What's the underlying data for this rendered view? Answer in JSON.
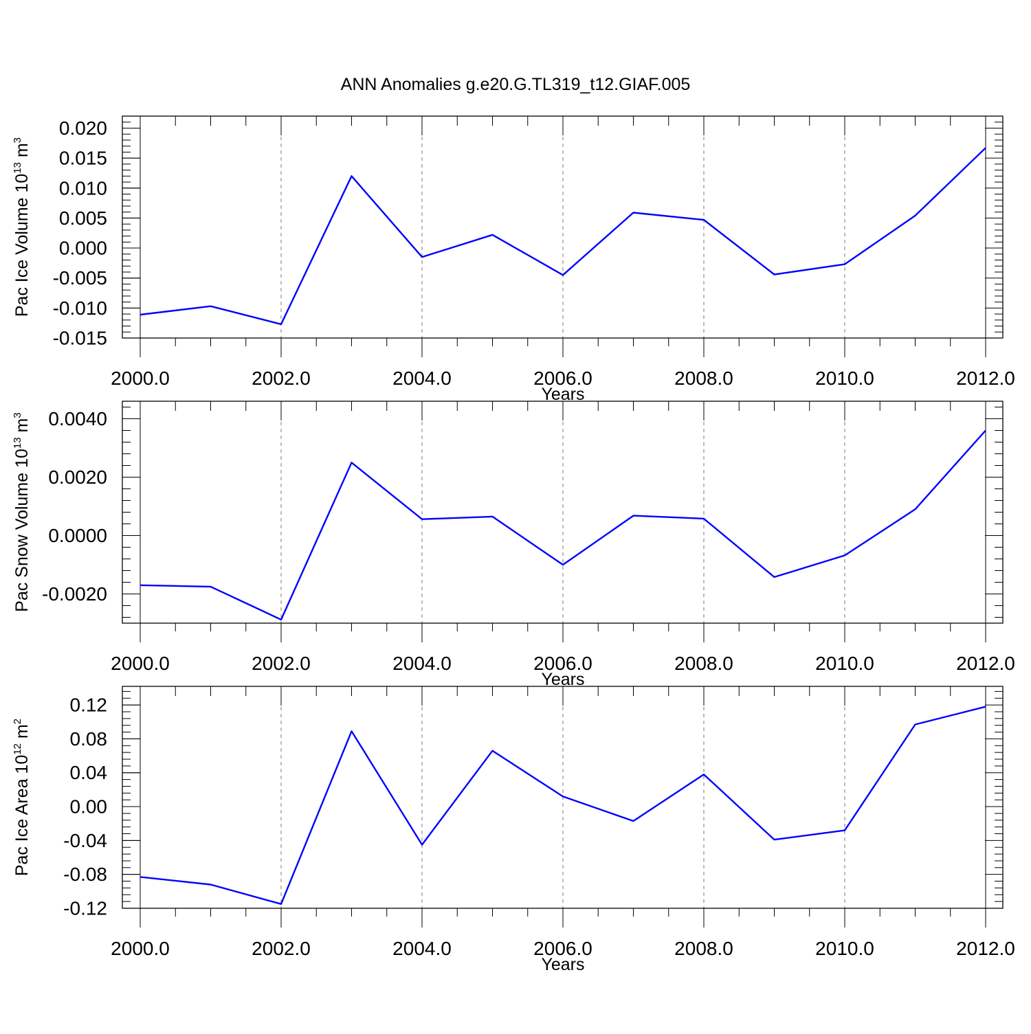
{
  "figure": {
    "title": "ANN Anomalies g.e20.G.TL319_t12.GIAF.005"
  },
  "chart_data": [
    {
      "type": "line",
      "ylabel_text": "Pac Ice Volume 10",
      "ylabel_exp": "13",
      "ylabel_unit": "m",
      "ylabel_unit_exp": "3",
      "xlabel": "Years",
      "xlim": [
        2000,
        2012
      ],
      "ylim": [
        -0.015,
        0.022
      ],
      "yticks": [
        -0.015,
        -0.01,
        -0.005,
        0.0,
        0.005,
        0.01,
        0.015,
        0.02
      ],
      "ytick_labels": [
        "-0.015",
        "-0.010",
        "-0.005",
        "0.000",
        "0.005",
        "0.010",
        "0.015",
        "0.020"
      ],
      "xticks": [
        2000,
        2002,
        2004,
        2006,
        2008,
        2010,
        2012
      ],
      "xtick_labels": [
        "2000.0",
        "2002.0",
        "2004.0",
        "2006.0",
        "2008.0",
        "2010.0",
        "2012.0"
      ],
      "grid": "vertical dashed at major x ticks",
      "series": [
        {
          "color": "#0000ff",
          "x": [
            2000,
            2001,
            2002,
            2003,
            2004,
            2005,
            2006,
            2007,
            2008,
            2009,
            2010,
            2011,
            2012
          ],
          "y": [
            -0.0111,
            -0.0097,
            -0.0127,
            0.012,
            -0.0015,
            0.0022,
            -0.0045,
            0.0059,
            0.0047,
            -0.0044,
            -0.0027,
            0.0054,
            0.0167
          ]
        }
      ]
    },
    {
      "type": "line",
      "ylabel_text": "Pac Snow Volume 10",
      "ylabel_exp": "13",
      "ylabel_unit": "m",
      "ylabel_unit_exp": "3",
      "xlabel": "Years",
      "xlim": [
        2000,
        2012
      ],
      "ylim": [
        -0.003,
        0.0046
      ],
      "yticks": [
        -0.002,
        0.0,
        0.002,
        0.004
      ],
      "ytick_labels": [
        "-0.0020",
        "0.0000",
        "0.0020",
        "0.0040"
      ],
      "xticks": [
        2000,
        2002,
        2004,
        2006,
        2008,
        2010,
        2012
      ],
      "xtick_labels": [
        "2000.0",
        "2002.0",
        "2004.0",
        "2006.0",
        "2008.0",
        "2010.0",
        "2012.0"
      ],
      "grid": "vertical dashed at major x ticks",
      "series": [
        {
          "color": "#0000ff",
          "x": [
            2000,
            2001,
            2002,
            2003,
            2004,
            2005,
            2006,
            2007,
            2008,
            2009,
            2010,
            2011,
            2012
          ],
          "y": [
            -0.0017,
            -0.00175,
            -0.00288,
            0.0025,
            0.00056,
            0.00065,
            -0.001,
            0.00068,
            0.00058,
            -0.00142,
            -0.00068,
            0.0009,
            0.0036
          ]
        }
      ]
    },
    {
      "type": "line",
      "ylabel_text": "Pac Ice Area 10",
      "ylabel_exp": "12",
      "ylabel_unit": "m",
      "ylabel_unit_exp": "2",
      "xlabel": "Years",
      "xlim": [
        2000,
        2012
      ],
      "ylim": [
        -0.12,
        0.142
      ],
      "yticks": [
        -0.12,
        -0.08,
        -0.04,
        0.0,
        0.04,
        0.08,
        0.12
      ],
      "ytick_labels": [
        "-0.12",
        "-0.08",
        "-0.04",
        "0.00",
        "0.04",
        "0.08",
        "0.12"
      ],
      "xticks": [
        2000,
        2002,
        2004,
        2006,
        2008,
        2010,
        2012
      ],
      "xtick_labels": [
        "2000.0",
        "2002.0",
        "2004.0",
        "2006.0",
        "2008.0",
        "2010.0",
        "2012.0"
      ],
      "grid": "vertical dashed at major x ticks",
      "series": [
        {
          "color": "#0000ff",
          "x": [
            2000,
            2001,
            2002,
            2003,
            2004,
            2005,
            2006,
            2007,
            2008,
            2009,
            2010,
            2011,
            2012
          ],
          "y": [
            -0.083,
            -0.092,
            -0.115,
            0.089,
            -0.045,
            0.066,
            0.012,
            -0.017,
            0.038,
            -0.039,
            -0.028,
            0.097,
            0.118
          ]
        }
      ]
    }
  ]
}
